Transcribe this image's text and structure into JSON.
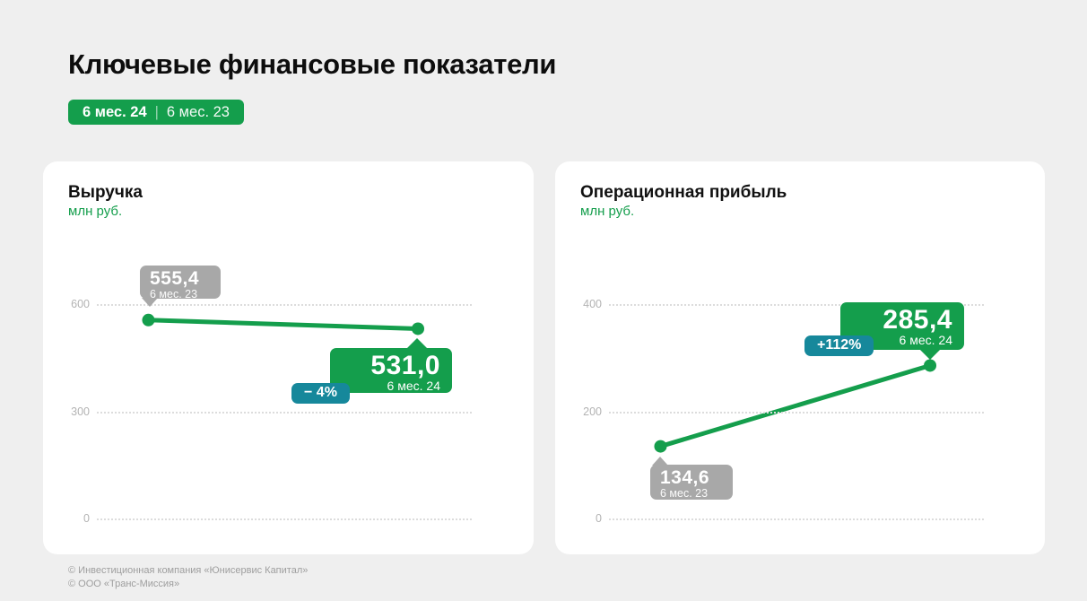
{
  "page": {
    "title": "Ключевые финансовые показатели",
    "period_badge": {
      "current": "6 мес. 24",
      "separator": "|",
      "previous": "6 мес. 23"
    },
    "footer_lines": [
      "© Инвестиционная компания «Юнисервис Капитал»",
      "© ООО «Транс-Миссия»"
    ]
  },
  "colors": {
    "background": "#EFEFEF",
    "card": "#FFFFFF",
    "accent_green": "#149E4C",
    "change_badge_teal": "#16889B",
    "prev_tooltip_gray": "#A8A8A8",
    "axis_label_gray": "#B3B3B3"
  },
  "chart_data": [
    {
      "type": "line",
      "title": "Выручка",
      "unit": "млн руб.",
      "categories": [
        "6 мес. 23",
        "6 мес. 24"
      ],
      "values": [
        555.4,
        531.0
      ],
      "value_labels": [
        "555,4",
        "531,0"
      ],
      "change_label": "− 4%",
      "ylim": [
        0,
        600
      ],
      "yticks": [
        {
          "value": 600,
          "label": "600"
        },
        {
          "value": 300,
          "label": "300"
        },
        {
          "value": 0,
          "label": "0"
        }
      ],
      "grid": "horizontal-dotted",
      "legend": "none"
    },
    {
      "type": "line",
      "title": "Операционная прибыль",
      "unit": "млн руб.",
      "categories": [
        "6 мес. 23",
        "6 мес. 24"
      ],
      "values": [
        134.6,
        285.4
      ],
      "value_labels": [
        "134,6",
        "285,4"
      ],
      "change_label": "+112%",
      "ylim": [
        0,
        400
      ],
      "yticks": [
        {
          "value": 400,
          "label": "400"
        },
        {
          "value": 200,
          "label": "200"
        },
        {
          "value": 0,
          "label": "0"
        }
      ],
      "grid": "horizontal-dotted",
      "legend": "none"
    }
  ]
}
